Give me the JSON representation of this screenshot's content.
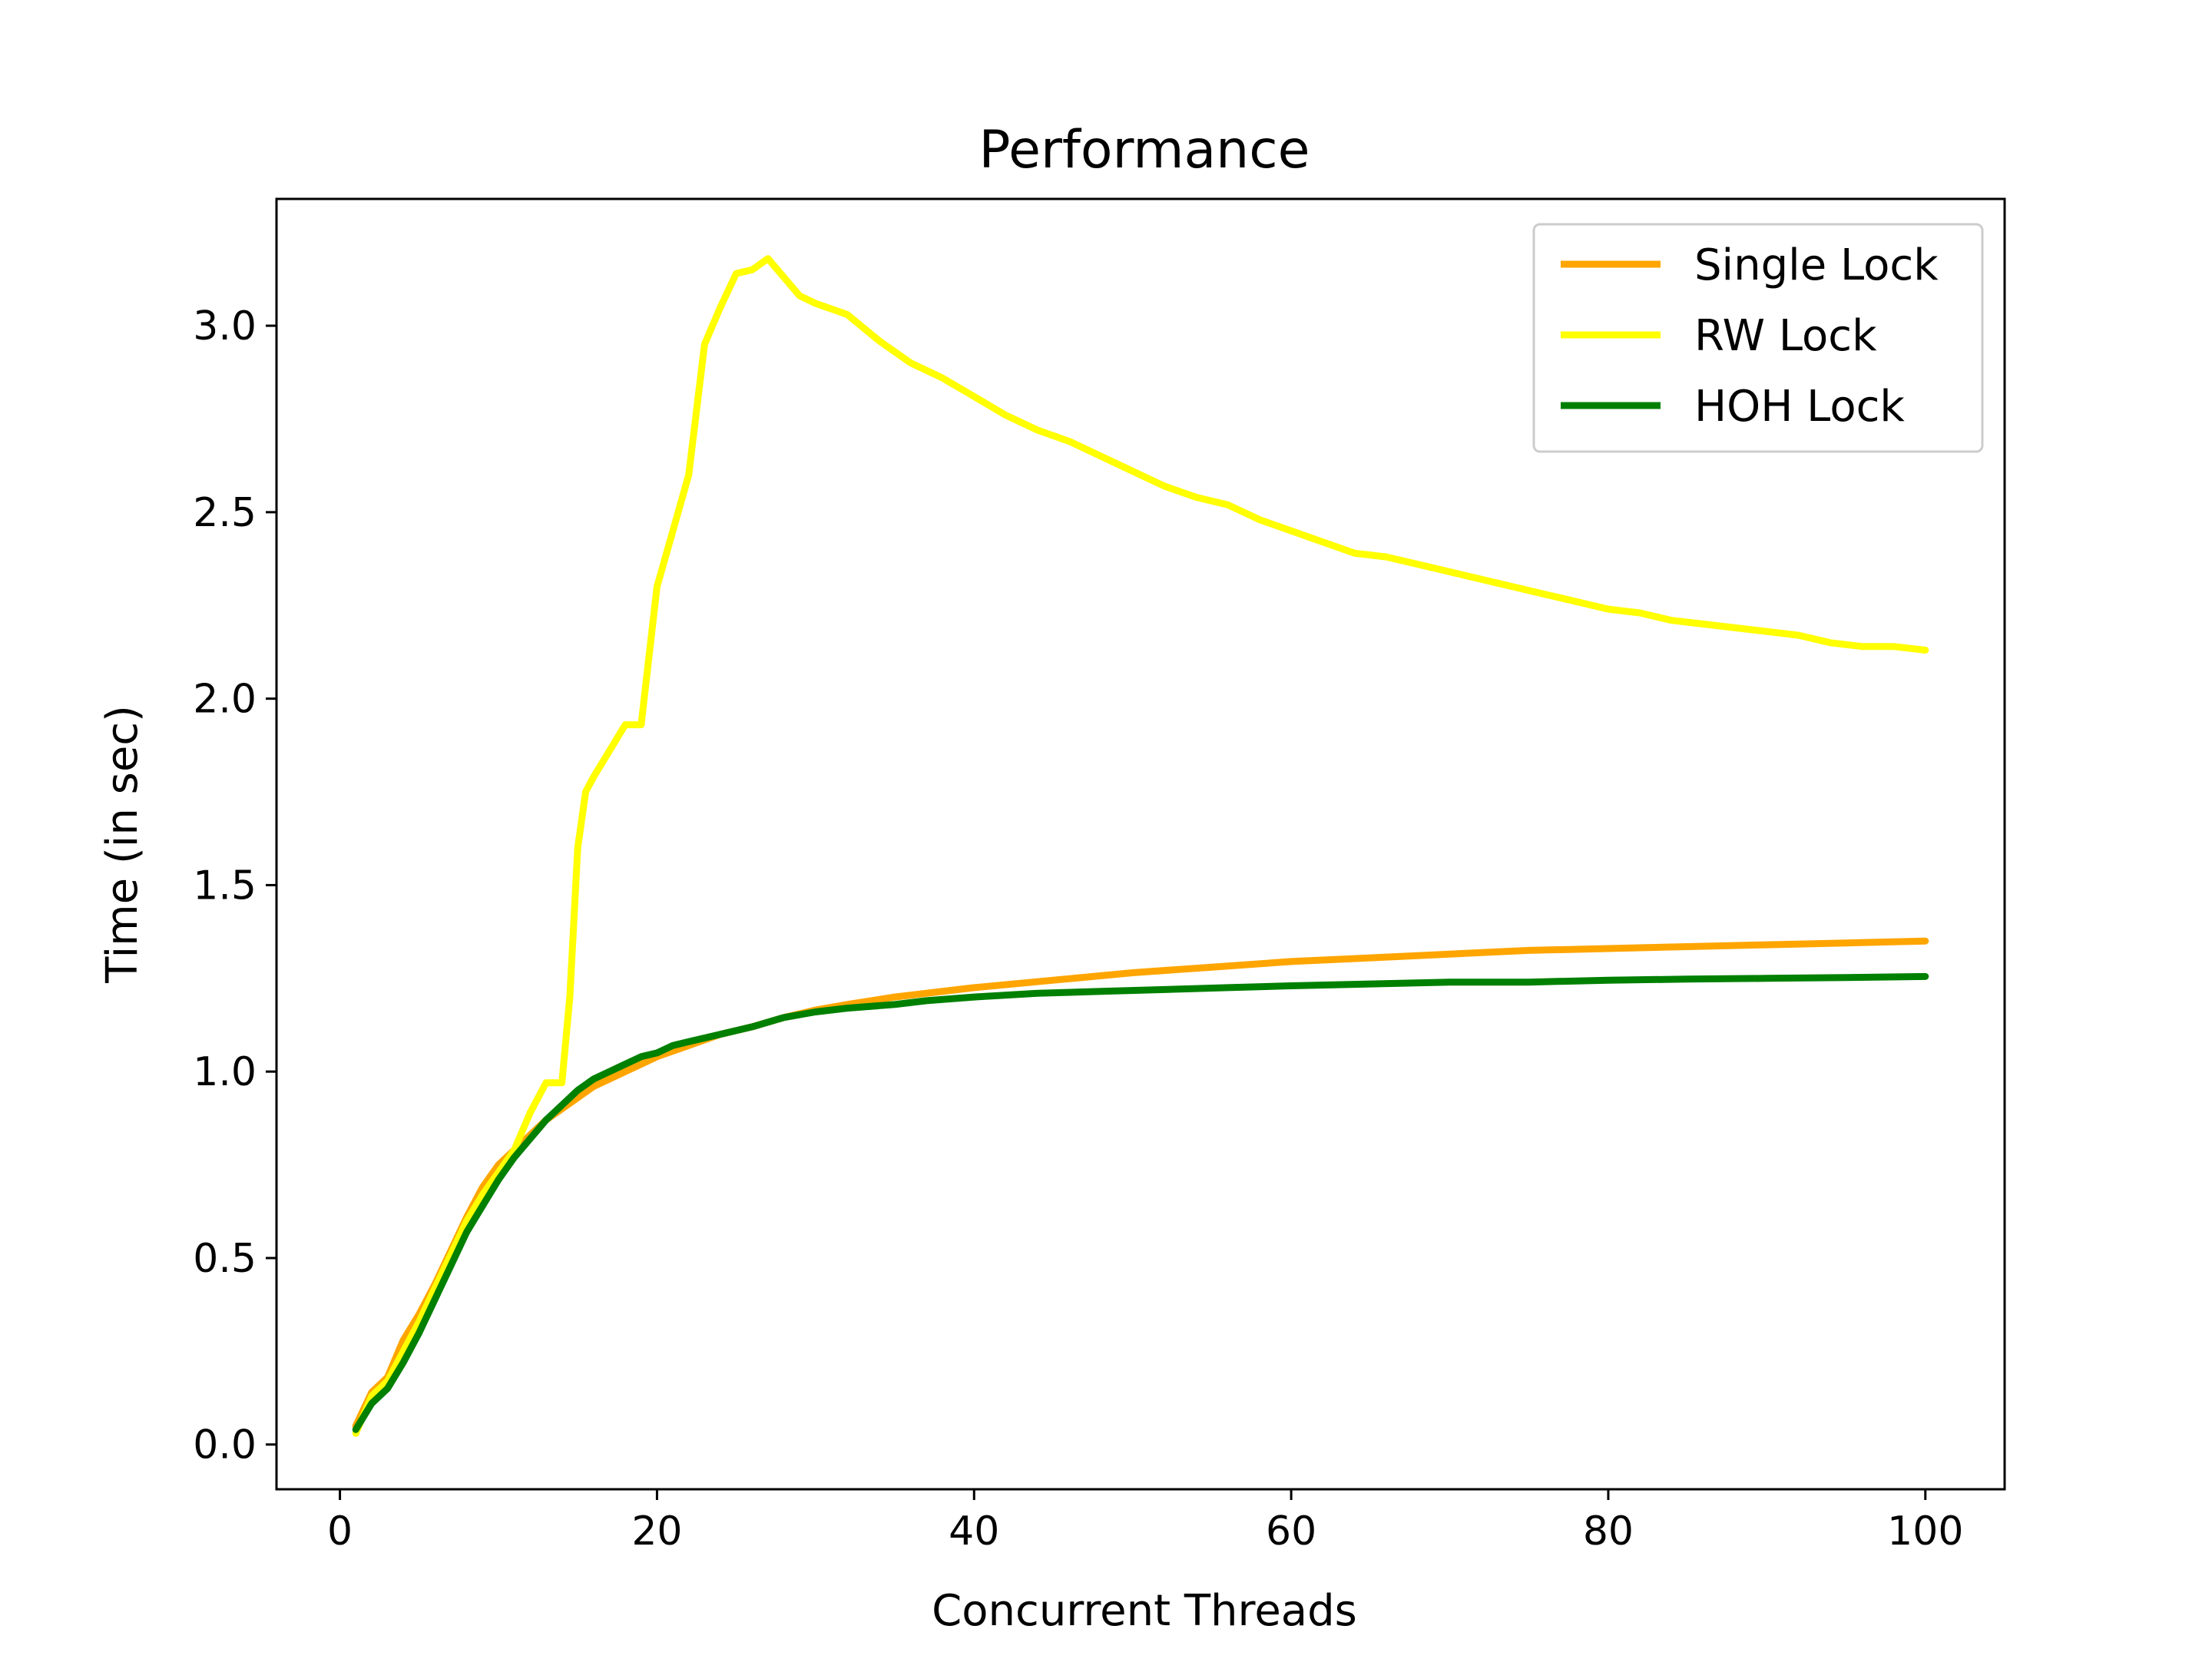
{
  "chart_data": {
    "type": "line",
    "title": "Performance",
    "xlabel": "Concurrent Threads",
    "ylabel": "Time (in sec)",
    "xlim": [
      -4,
      105
    ],
    "ylim": [
      -0.12,
      3.34
    ],
    "xticks": [
      0,
      20,
      40,
      60,
      80,
      100
    ],
    "yticks": [
      0.0,
      0.5,
      1.0,
      1.5,
      2.0,
      2.5,
      3.0
    ],
    "xtick_labels": [
      "0",
      "20",
      "40",
      "60",
      "80",
      "100"
    ],
    "ytick_labels": [
      "0.0",
      "0.5",
      "1.0",
      "1.5",
      "2.0",
      "2.5",
      "3.0"
    ],
    "grid": false,
    "legend_position": "top-right",
    "series": [
      {
        "name": "Single Lock",
        "color": "#ffa500",
        "points": [
          [
            1,
            0.05
          ],
          [
            2,
            0.14
          ],
          [
            3,
            0.18
          ],
          [
            4,
            0.28
          ],
          [
            5,
            0.35
          ],
          [
            6,
            0.43
          ],
          [
            7,
            0.52
          ],
          [
            8,
            0.61
          ],
          [
            9,
            0.69
          ],
          [
            10,
            0.75
          ],
          [
            11,
            0.79
          ],
          [
            12,
            0.83
          ],
          [
            13,
            0.87
          ],
          [
            14,
            0.9
          ],
          [
            15,
            0.93
          ],
          [
            16,
            0.96
          ],
          [
            17,
            0.98
          ],
          [
            18,
            1.0
          ],
          [
            19,
            1.02
          ],
          [
            20,
            1.04
          ],
          [
            22,
            1.07
          ],
          [
            24,
            1.1
          ],
          [
            26,
            1.12
          ],
          [
            28,
            1.145
          ],
          [
            30,
            1.165
          ],
          [
            32,
            1.18
          ],
          [
            35,
            1.2
          ],
          [
            40,
            1.225
          ],
          [
            45,
            1.245
          ],
          [
            50,
            1.265
          ],
          [
            55,
            1.28
          ],
          [
            60,
            1.295
          ],
          [
            65,
            1.305
          ],
          [
            70,
            1.315
          ],
          [
            75,
            1.325
          ],
          [
            80,
            1.33
          ],
          [
            85,
            1.335
          ],
          [
            90,
            1.34
          ],
          [
            95,
            1.345
          ],
          [
            100,
            1.35
          ]
        ]
      },
      {
        "name": "RW Lock",
        "color": "#ffff00",
        "points": [
          [
            1,
            0.03
          ],
          [
            2,
            0.13
          ],
          [
            3,
            0.17
          ],
          [
            4,
            0.25
          ],
          [
            5,
            0.33
          ],
          [
            6,
            0.42
          ],
          [
            7,
            0.51
          ],
          [
            8,
            0.6
          ],
          [
            9,
            0.67
          ],
          [
            10,
            0.73
          ],
          [
            11,
            0.79
          ],
          [
            12,
            0.89
          ],
          [
            13,
            0.97
          ],
          [
            14,
            0.97
          ],
          [
            14.5,
            1.2
          ],
          [
            15,
            1.6
          ],
          [
            15.5,
            1.75
          ],
          [
            16,
            1.79
          ],
          [
            17,
            1.86
          ],
          [
            18,
            1.93
          ],
          [
            19,
            1.93
          ],
          [
            20,
            2.3
          ],
          [
            21,
            2.45
          ],
          [
            22,
            2.6
          ],
          [
            23,
            2.95
          ],
          [
            24,
            3.05
          ],
          [
            25,
            3.14
          ],
          [
            26,
            3.15
          ],
          [
            27,
            3.18
          ],
          [
            28,
            3.13
          ],
          [
            29,
            3.08
          ],
          [
            30,
            3.06
          ],
          [
            32,
            3.03
          ],
          [
            34,
            2.96
          ],
          [
            36,
            2.9
          ],
          [
            38,
            2.86
          ],
          [
            40,
            2.81
          ],
          [
            42,
            2.76
          ],
          [
            44,
            2.72
          ],
          [
            46,
            2.69
          ],
          [
            48,
            2.65
          ],
          [
            50,
            2.61
          ],
          [
            52,
            2.57
          ],
          [
            54,
            2.54
          ],
          [
            56,
            2.52
          ],
          [
            58,
            2.48
          ],
          [
            60,
            2.45
          ],
          [
            62,
            2.42
          ],
          [
            64,
            2.39
          ],
          [
            66,
            2.38
          ],
          [
            68,
            2.36
          ],
          [
            70,
            2.34
          ],
          [
            72,
            2.32
          ],
          [
            74,
            2.3
          ],
          [
            76,
            2.28
          ],
          [
            78,
            2.26
          ],
          [
            80,
            2.24
          ],
          [
            82,
            2.23
          ],
          [
            84,
            2.21
          ],
          [
            86,
            2.2
          ],
          [
            88,
            2.19
          ],
          [
            90,
            2.18
          ],
          [
            92,
            2.17
          ],
          [
            94,
            2.15
          ],
          [
            96,
            2.14
          ],
          [
            98,
            2.14
          ],
          [
            100,
            2.13
          ]
        ]
      },
      {
        "name": "HOH Lock",
        "color": "#008000",
        "points": [
          [
            1,
            0.04
          ],
          [
            2,
            0.11
          ],
          [
            3,
            0.15
          ],
          [
            4,
            0.22
          ],
          [
            5,
            0.3
          ],
          [
            6,
            0.39
          ],
          [
            7,
            0.48
          ],
          [
            8,
            0.57
          ],
          [
            9,
            0.64
          ],
          [
            10,
            0.71
          ],
          [
            11,
            0.77
          ],
          [
            12,
            0.82
          ],
          [
            13,
            0.87
          ],
          [
            14,
            0.91
          ],
          [
            15,
            0.95
          ],
          [
            16,
            0.98
          ],
          [
            17,
            1.0
          ],
          [
            18,
            1.02
          ],
          [
            19,
            1.04
          ],
          [
            20,
            1.05
          ],
          [
            21,
            1.07
          ],
          [
            22,
            1.08
          ],
          [
            24,
            1.1
          ],
          [
            26,
            1.12
          ],
          [
            28,
            1.145
          ],
          [
            30,
            1.16
          ],
          [
            32,
            1.17
          ],
          [
            35,
            1.18
          ],
          [
            37,
            1.19
          ],
          [
            40,
            1.2
          ],
          [
            44,
            1.21
          ],
          [
            48,
            1.215
          ],
          [
            52,
            1.22
          ],
          [
            56,
            1.225
          ],
          [
            60,
            1.23
          ],
          [
            65,
            1.235
          ],
          [
            70,
            1.24
          ],
          [
            75,
            1.24
          ],
          [
            80,
            1.245
          ],
          [
            85,
            1.248
          ],
          [
            90,
            1.25
          ],
          [
            95,
            1.252
          ],
          [
            100,
            1.255
          ]
        ]
      }
    ]
  }
}
